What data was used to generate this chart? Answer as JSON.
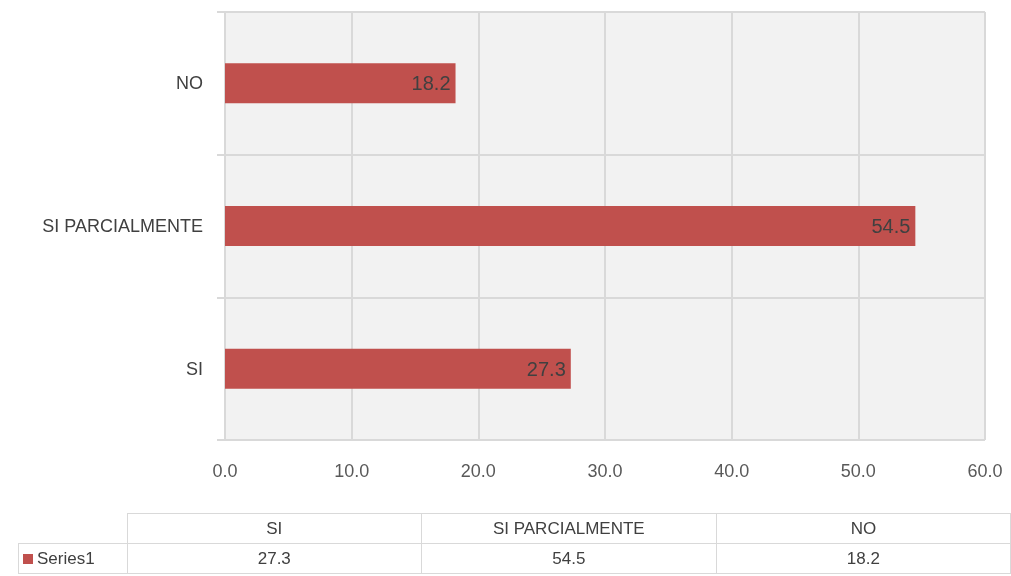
{
  "chart_data": {
    "type": "bar",
    "orientation": "horizontal",
    "categories": [
      "NO",
      "SI PARCIALMENTE",
      "SI"
    ],
    "series": [
      {
        "name": "Series1",
        "color": "#c0504d",
        "values": [
          18.2,
          54.5,
          27.3
        ]
      }
    ],
    "xlim": [
      0,
      60
    ],
    "xticks": [
      {
        "value": 0,
        "label": "0.0"
      },
      {
        "value": 10,
        "label": "10.0"
      },
      {
        "value": 20,
        "label": "20.0"
      },
      {
        "value": 30,
        "label": "30.0"
      },
      {
        "value": 40,
        "label": "40.0"
      },
      {
        "value": 50,
        "label": "50.0"
      },
      {
        "value": 60,
        "label": "60.0"
      }
    ],
    "annotations": [
      "27.3",
      "54.5",
      "18.2"
    ],
    "grid": true,
    "data_labels": true,
    "legend": "bottom"
  }
}
